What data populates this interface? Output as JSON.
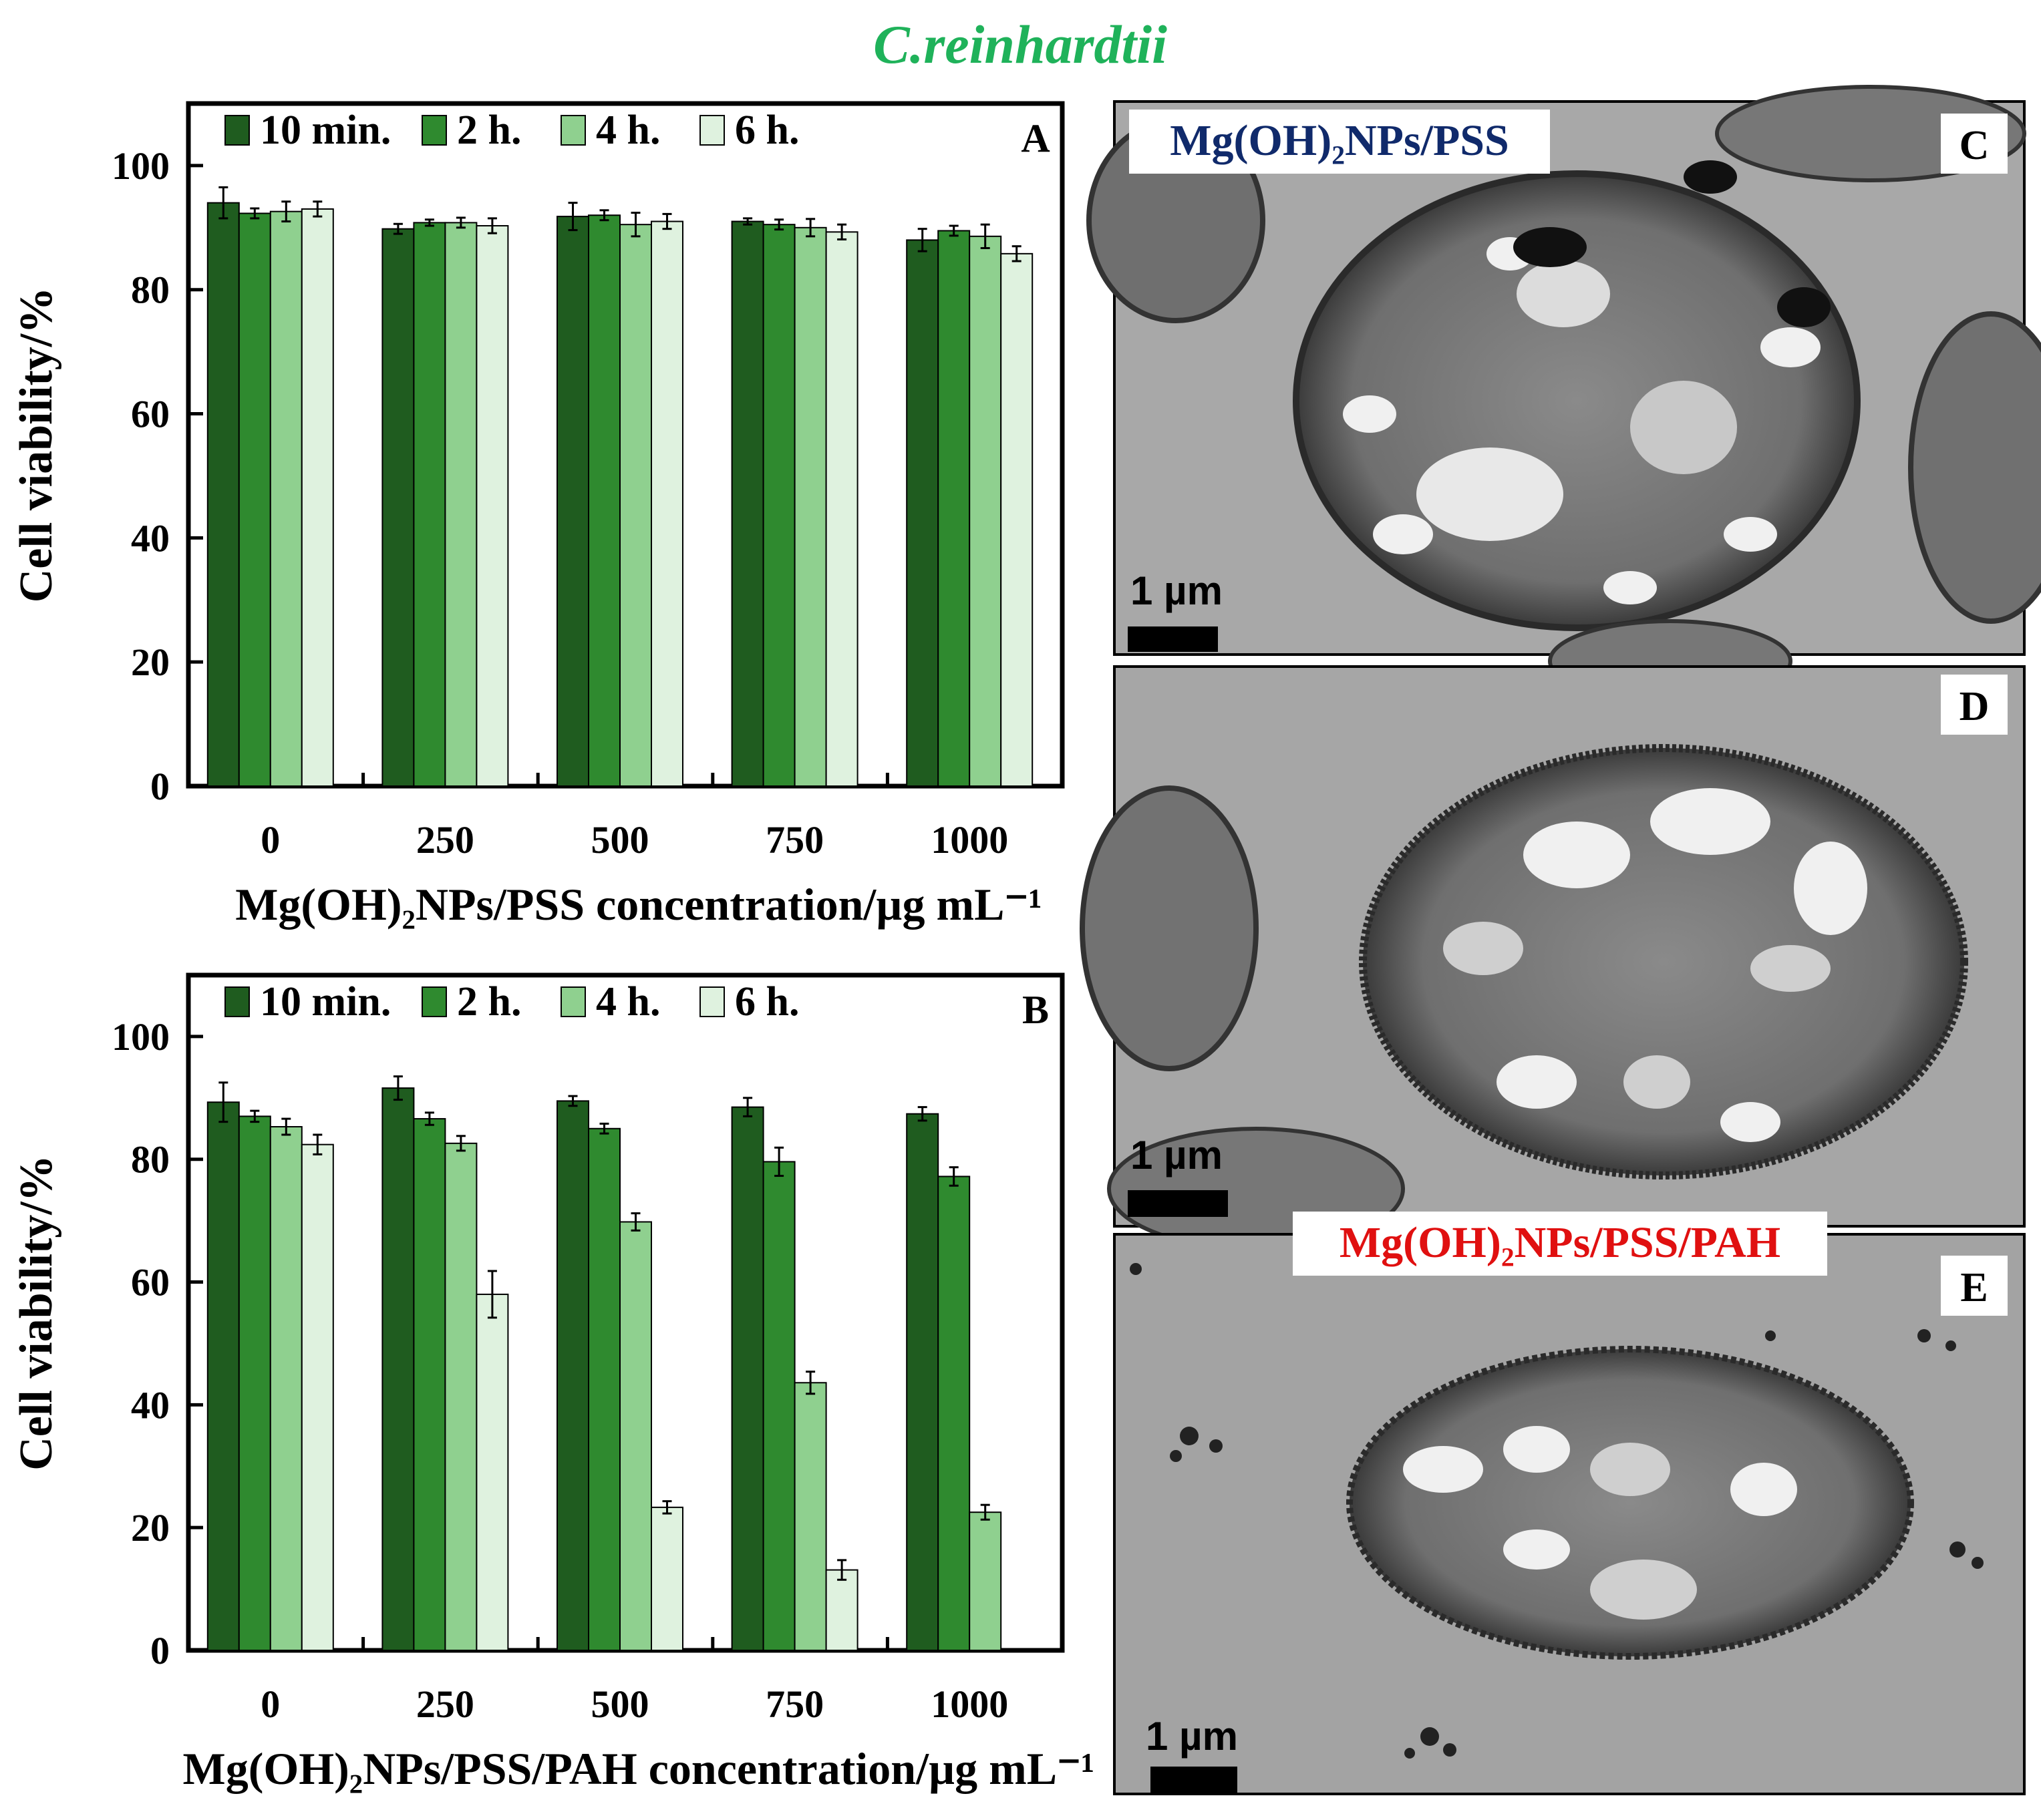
{
  "figure_title": "C.reinhardtii",
  "colors": {
    "title": "#1fb25a",
    "series": [
      "#1f5c1f",
      "#2f8a2f",
      "#8fd08f",
      "#dff2df"
    ],
    "error_bar": "#000000",
    "label_pss": "#102a6b",
    "label_pah": "#e01010",
    "micro_bg": "#a6a6a6"
  },
  "chart_data": [
    {
      "panel": "A",
      "type": "bar",
      "categories": [
        "0",
        "250",
        "500",
        "750",
        "1000"
      ],
      "series": [
        {
          "name": "10 min.",
          "values": [
            94,
            89.8,
            91.8,
            91,
            88
          ],
          "errors": [
            2.5,
            0.8,
            2.2,
            0.5,
            1.8
          ]
        },
        {
          "name": "2 h.",
          "values": [
            92.3,
            90.8,
            92,
            90.5,
            89.5
          ],
          "errors": [
            0.8,
            0.5,
            0.8,
            0.8,
            0.8
          ]
        },
        {
          "name": "4 h.",
          "values": [
            92.6,
            90.8,
            90.5,
            90,
            88.6
          ],
          "errors": [
            1.6,
            0.8,
            1.9,
            1.4,
            1.9
          ]
        },
        {
          "name": "6 h.",
          "values": [
            93,
            90.3,
            91,
            89.3,
            85.8
          ],
          "errors": [
            1.2,
            1.2,
            1.2,
            1.2,
            1.2
          ]
        }
      ],
      "xlabel": "Mg(OH)₂NPs/PSS concentration/µg mL⁻¹",
      "ylabel": "Cell viability/%",
      "ylim": [
        0,
        110
      ],
      "yticks": [
        "0",
        "20",
        "40",
        "60",
        "80",
        "100"
      ],
      "grid": false,
      "legend": "top"
    },
    {
      "panel": "B",
      "type": "bar",
      "categories": [
        "0",
        "250",
        "500",
        "750",
        "1000"
      ],
      "series": [
        {
          "name": "10 min.",
          "values": [
            89.3,
            91.6,
            89.5,
            88.5,
            87.4
          ],
          "errors": [
            3.2,
            1.9,
            0.8,
            1.5,
            1.1
          ]
        },
        {
          "name": "2 h.",
          "values": [
            87,
            86.6,
            85,
            79.6,
            77.2
          ],
          "errors": [
            0.9,
            1.0,
            0.8,
            2.3,
            1.5
          ]
        },
        {
          "name": "4 h.",
          "values": [
            85.3,
            82.6,
            69.8,
            43.6,
            22.5
          ],
          "errors": [
            1.3,
            1.2,
            1.4,
            1.8,
            1.2
          ]
        },
        {
          "name": "6 h.",
          "values": [
            82.4,
            58,
            23.3,
            13.1,
            null
          ],
          "errors": [
            1.6,
            3.8,
            1.0,
            1.6,
            null
          ]
        }
      ],
      "xlabel": "Mg(OH)₂NPs/PSS/PAH concentration/µg mL⁻¹",
      "ylabel": "Cell viability/%",
      "ylim": [
        0,
        110
      ],
      "yticks": [
        "0",
        "20",
        "40",
        "60",
        "80",
        "100"
      ],
      "grid": false,
      "legend": "top"
    }
  ],
  "micrographs": [
    {
      "panel": "C",
      "sample_label": "Mg(OH)₂NPs/PSS",
      "scale_label": "1 µm"
    },
    {
      "panel": "D",
      "sample_label": "",
      "scale_label": "1 µm"
    },
    {
      "panel": "E",
      "sample_label": "Mg(OH)₂NPs/PSS/PAH",
      "scale_label": "1 µm"
    }
  ]
}
